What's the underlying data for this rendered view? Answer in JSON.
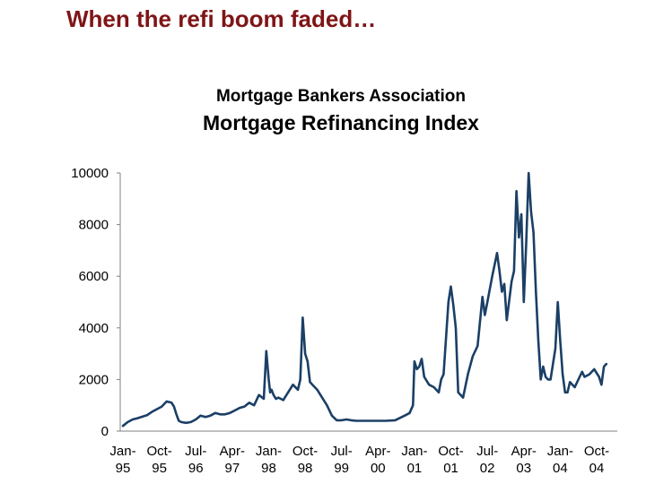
{
  "slide": {
    "title": "When the refi boom faded…"
  },
  "chart_data": {
    "type": "line",
    "title": "Mortgage Bankers Association",
    "subtitle": "Mortgage Refinancing Index",
    "xlabel": "",
    "ylabel": "",
    "ylim": [
      0,
      10000
    ],
    "yticks": [
      0,
      2000,
      4000,
      6000,
      8000,
      10000
    ],
    "xlim": [
      1995.0,
      2004.95
    ],
    "xticks": [
      {
        "x": 1995.0,
        "line1": "Jan-",
        "line2": "95"
      },
      {
        "x": 1995.75,
        "line1": "Oct-",
        "line2": "95"
      },
      {
        "x": 1996.5,
        "line1": "Jul-",
        "line2": "96"
      },
      {
        "x": 1997.25,
        "line1": "Apr-",
        "line2": "97"
      },
      {
        "x": 1998.0,
        "line1": "Jan-",
        "line2": "98"
      },
      {
        "x": 1998.75,
        "line1": "Oct-",
        "line2": "98"
      },
      {
        "x": 1999.5,
        "line1": "Jul-",
        "line2": "99"
      },
      {
        "x": 2000.25,
        "line1": "Apr-",
        "line2": "00"
      },
      {
        "x": 2001.0,
        "line1": "Jan-",
        "line2": "01"
      },
      {
        "x": 2001.75,
        "line1": "Oct-",
        "line2": "01"
      },
      {
        "x": 2002.5,
        "line1": "Jul-",
        "line2": "02"
      },
      {
        "x": 2003.25,
        "line1": "Apr-",
        "line2": "03"
      },
      {
        "x": 2004.0,
        "line1": "Jan-",
        "line2": "04"
      },
      {
        "x": 2004.75,
        "line1": "Oct-",
        "line2": "04"
      }
    ],
    "grid": false,
    "legend": "none",
    "color": "#1b3f66",
    "series": [
      {
        "x": [
          1995.0,
          1995.1,
          1995.2,
          1995.3,
          1995.4,
          1995.5,
          1995.6,
          1995.7,
          1995.8,
          1995.9,
          1996.0,
          1996.05,
          1996.1,
          1996.15,
          1996.2,
          1996.3,
          1996.4,
          1996.5,
          1996.6,
          1996.7,
          1996.8,
          1996.9,
          1997.0,
          1997.1,
          1997.2,
          1997.3,
          1997.4,
          1997.5,
          1997.6,
          1997.7,
          1997.8,
          1997.9,
          1997.95,
          1998.0,
          1998.03,
          1998.06,
          1998.1,
          1998.15,
          1998.2,
          1998.3,
          1998.4,
          1998.5,
          1998.6,
          1998.65,
          1998.7,
          1998.75,
          1998.8,
          1998.85,
          1998.9,
          1999.0,
          1999.1,
          1999.2,
          1999.3,
          1999.4,
          1999.5,
          1999.6,
          1999.7,
          1999.8,
          1999.9,
          2000.0,
          2000.2,
          2000.4,
          2000.6,
          2000.8,
          2000.9,
          2000.97,
          2001.0,
          2001.05,
          2001.1,
          2001.15,
          2001.2,
          2001.3,
          2001.4,
          2001.5,
          2001.55,
          2001.6,
          2001.7,
          2001.75,
          2001.8,
          2001.85,
          2001.9,
          2002.0,
          2002.1,
          2002.2,
          2002.3,
          2002.4,
          2002.45,
          2002.5,
          2002.6,
          2002.7,
          2002.75,
          2002.8,
          2002.85,
          2002.9,
          2003.0,
          2003.05,
          2003.1,
          2003.15,
          2003.2,
          2003.25,
          2003.3,
          2003.35,
          2003.4,
          2003.45,
          2003.5,
          2003.55,
          2003.6,
          2003.65,
          2003.7,
          2003.75,
          2003.8,
          2003.85,
          2003.9,
          2003.95,
          2004.0,
          2004.05,
          2004.1,
          2004.15,
          2004.2,
          2004.3,
          2004.4,
          2004.45,
          2004.5,
          2004.6,
          2004.7,
          2004.8,
          2004.85,
          2004.9,
          2004.95
        ],
        "values": [
          200,
          350,
          450,
          500,
          560,
          620,
          750,
          850,
          950,
          1150,
          1100,
          950,
          650,
          400,
          350,
          320,
          350,
          450,
          600,
          550,
          600,
          700,
          650,
          650,
          700,
          800,
          900,
          950,
          1100,
          1000,
          1400,
          1250,
          3100,
          2000,
          1500,
          1600,
          1400,
          1250,
          1300,
          1200,
          1500,
          1800,
          1600,
          2000,
          4400,
          3000,
          2700,
          1900,
          1800,
          1600,
          1300,
          1000,
          600,
          420,
          420,
          450,
          420,
          400,
          400,
          400,
          400,
          400,
          420,
          600,
          700,
          1000,
          2700,
          2400,
          2500,
          2800,
          2100,
          1800,
          1700,
          1500,
          2000,
          2200,
          5000,
          5600,
          4900,
          4000,
          1500,
          1300,
          2200,
          2900,
          3300,
          5200,
          4500,
          5000,
          6000,
          6900,
          6200,
          5400,
          5700,
          4300,
          5800,
          6200,
          9300,
          7500,
          8400,
          5000,
          7300,
          10000,
          8500,
          7700,
          5400,
          3500,
          2000,
          2500,
          2100,
          2000,
          2000,
          2600,
          3200,
          5000,
          3500,
          2200,
          1500,
          1500,
          1900,
          1700,
          2100,
          2300,
          2100,
          2200,
          2400,
          2100,
          1800,
          2500,
          2600
        ]
      }
    ]
  }
}
